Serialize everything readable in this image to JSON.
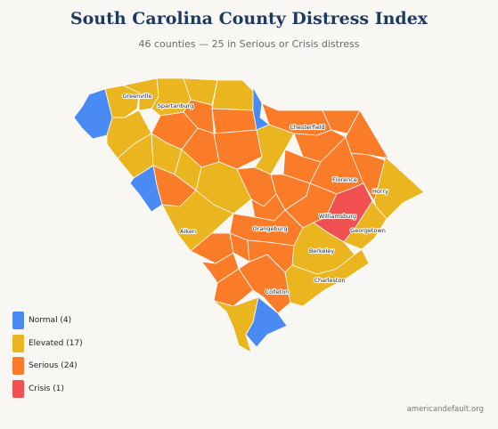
{
  "title": "South Carolina County Distress Index",
  "subtitle": "46 counties — 25 in Serious or Crisis distress",
  "credit": "americandefault.org",
  "colors": {
    "normal": "#4a8af4",
    "elevated": "#eab51f",
    "serious": "#fb7c28",
    "crisis": "#f0504f"
  },
  "legend": [
    {
      "key": "normal",
      "label": "Normal (4)"
    },
    {
      "key": "elevated",
      "label": "Elevated (17)"
    },
    {
      "key": "serious",
      "label": "Serious (24)"
    },
    {
      "key": "crisis",
      "label": "Crisis (1)"
    }
  ],
  "county_labels": {
    "greenville": "Greenville",
    "spartanburg": "Spartanburg",
    "chesterfield": "Chesterfield",
    "florence": "Florence",
    "horry": "Horry",
    "williamsburg": "Williamsburg",
    "georgetown": "Georgetown",
    "aiken": "Aiken",
    "orangeburg": "Orangeburg",
    "berkeley": "Berkeley",
    "charleston": "Charleston",
    "colleton": "Colleton"
  }
}
